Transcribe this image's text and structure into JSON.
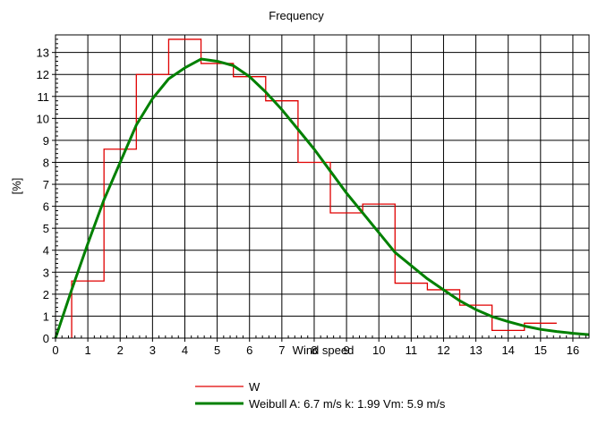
{
  "chart_data": {
    "type": "line",
    "title": "Frequency",
    "xlabel": "Wind speed",
    "ylabel": "[%]",
    "xlim": [
      0,
      16.5
    ],
    "ylim": [
      0,
      13.8
    ],
    "x_ticks": [
      0,
      1,
      2,
      3,
      4,
      5,
      6,
      7,
      8,
      9,
      10,
      11,
      12,
      13,
      14,
      15,
      16
    ],
    "y_ticks": [
      0,
      1,
      2,
      3,
      4,
      5,
      6,
      7,
      8,
      9,
      10,
      11,
      12,
      13
    ],
    "grid": true,
    "legend_position": "bottom",
    "series": [
      {
        "name": "W",
        "kind": "step-histogram",
        "color": "#e00000",
        "bin_edges": [
          0.5,
          1.5,
          2.5,
          3.5,
          4.5,
          5.5,
          6.5,
          7.5,
          8.5,
          9.5,
          10.5,
          11.5,
          12.5,
          13.5,
          14.5,
          15.5
        ],
        "values": [
          2.6,
          8.6,
          12.0,
          13.6,
          12.5,
          11.9,
          10.8,
          8.0,
          5.7,
          6.1,
          2.5,
          2.2,
          1.5,
          0.35,
          0.68
        ]
      },
      {
        "name": "Weibull A: 6.7 m/s k: 1.99 Vm: 5.9 m/s",
        "kind": "curve",
        "color": "#008000",
        "x": [
          0,
          0.5,
          1,
          1.5,
          2,
          2.5,
          3,
          3.5,
          4,
          4.5,
          5,
          5.5,
          6,
          6.5,
          7,
          7.5,
          8,
          8.5,
          9,
          9.5,
          10,
          10.5,
          11,
          11.5,
          12,
          12.5,
          13,
          13.5,
          14,
          14.5,
          15,
          15.5,
          16,
          16.5
        ],
        "y": [
          0,
          2.2,
          4.3,
          6.3,
          8.0,
          9.7,
          10.9,
          11.8,
          12.3,
          12.7,
          12.6,
          12.4,
          11.9,
          11.2,
          10.4,
          9.5,
          8.6,
          7.6,
          6.6,
          5.7,
          4.8,
          3.9,
          3.3,
          2.7,
          2.2,
          1.7,
          1.3,
          0.98,
          0.75,
          0.55,
          0.4,
          0.3,
          0.22,
          0.16
        ]
      }
    ]
  }
}
